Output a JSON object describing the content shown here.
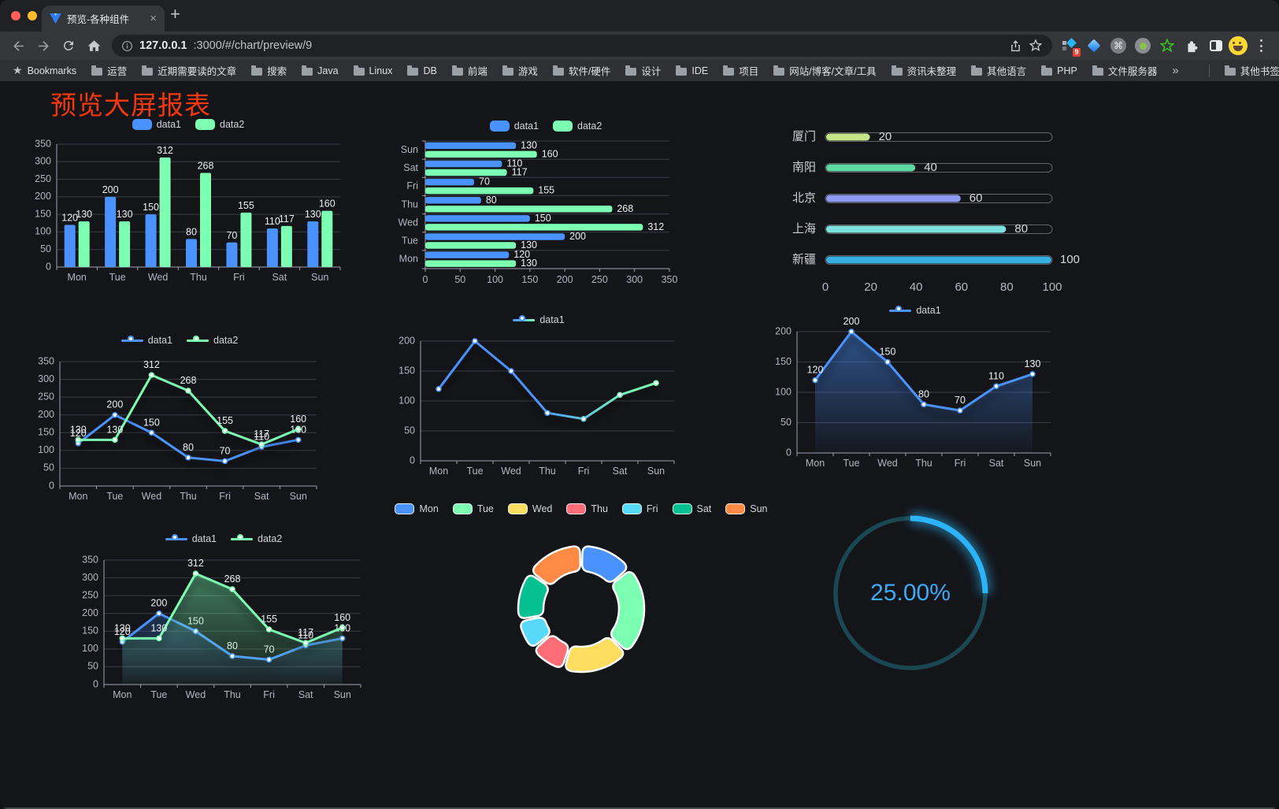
{
  "browser": {
    "traffic_lights": [
      "#ff5f57",
      "#febc2e",
      "#28c840"
    ],
    "tab": {
      "title": "预览-各种组件",
      "close_glyph": "×"
    },
    "new_tab_button": "+",
    "url_host": "127.0.0.1",
    "url_rest": ":3000/#/chart/preview/9",
    "extension_badge": "9",
    "bookmarks_label": "Bookmarks",
    "bookmarks": [
      "运营",
      "近期需要读的文章",
      "搜索",
      "Java",
      "Linux",
      "DB",
      "前端",
      "游戏",
      "软件/硬件",
      "设计",
      "IDE",
      "项目",
      "网站/博客/文章/工具",
      "资讯未整理",
      "其他语言",
      "PHP",
      "文件服务器"
    ],
    "bookmarks_overflow": "»",
    "other_bookmarks": "其他书签"
  },
  "page": {
    "title": "预览大屏报表",
    "title_color": "#f5380c",
    "background": "#141519"
  },
  "palette": {
    "axis_line": "#9ea3ae",
    "grid_line": "#3b3d47",
    "axis_label": "#b2b6c2",
    "value_label": "#eef0f4",
    "legend_label": "#d2d5dc",
    "series_blue": "#4992ff",
    "series_green": "#7cffb2"
  },
  "chart_data": [
    {
      "id": "grouped-bar",
      "type": "bar",
      "title": "",
      "legend": "rect",
      "labels": true,
      "categories": [
        "Mon",
        "Tue",
        "Wed",
        "Thu",
        "Fri",
        "Sat",
        "Sun"
      ],
      "series": [
        {
          "name": "data1",
          "color": "#4992ff",
          "values": [
            120,
            200,
            150,
            80,
            70,
            110,
            130
          ]
        },
        {
          "name": "data2",
          "color": "#7cffb2",
          "values": [
            130,
            130,
            312,
            268,
            155,
            117,
            160
          ]
        }
      ],
      "ylim": [
        0,
        350
      ],
      "yticks": [
        0,
        50,
        100,
        150,
        200,
        250,
        300,
        350
      ]
    },
    {
      "id": "horizontal-bar",
      "type": "hbar",
      "legend": "rect",
      "labels": true,
      "categories": [
        "Mon",
        "Tue",
        "Wed",
        "Thu",
        "Fri",
        "Sat",
        "Sun"
      ],
      "series": [
        {
          "name": "data1",
          "color": "#4992ff",
          "values": [
            120,
            200,
            150,
            80,
            70,
            110,
            130
          ]
        },
        {
          "name": "data2",
          "color": "#7cffb2",
          "values": [
            130,
            130,
            312,
            268,
            155,
            117,
            160
          ]
        }
      ],
      "xlim": [
        0,
        350
      ],
      "xticks": [
        0,
        50,
        100,
        150,
        200,
        250,
        300,
        350
      ]
    },
    {
      "id": "city-progress",
      "type": "progress",
      "max": 100,
      "ticks": [
        0,
        20,
        40,
        60,
        80,
        100
      ],
      "items": [
        {
          "label": "厦门",
          "value": 20,
          "color": "#c6e589"
        },
        {
          "label": "南阳",
          "value": 40,
          "color": "#5fd9a4"
        },
        {
          "label": "北京",
          "value": 60,
          "color": "#8e9af0"
        },
        {
          "label": "上海",
          "value": 80,
          "color": "#7de1df"
        },
        {
          "label": "新疆",
          "value": 100,
          "color": "#38aee3"
        }
      ]
    },
    {
      "id": "two-line",
      "type": "line",
      "legend": "line",
      "labels": true,
      "categories": [
        "Mon",
        "Tue",
        "Wed",
        "Thu",
        "Fri",
        "Sat",
        "Sun"
      ],
      "series": [
        {
          "name": "data1",
          "color": "#4992ff",
          "values": [
            120,
            200,
            150,
            80,
            70,
            110,
            130
          ]
        },
        {
          "name": "data2",
          "color": "#7cffb2",
          "values": [
            130,
            130,
            312,
            268,
            155,
            117,
            160
          ]
        }
      ],
      "ylim": [
        0,
        350
      ],
      "yticks": [
        0,
        50,
        100,
        150,
        200,
        250,
        300,
        350
      ]
    },
    {
      "id": "gradient-line",
      "type": "line",
      "legend": "line",
      "labels": false,
      "categories": [
        "Mon",
        "Tue",
        "Wed",
        "Thu",
        "Fri",
        "Sat",
        "Sun"
      ],
      "series": [
        {
          "name": "data1",
          "gradient": [
            "#4992ff",
            "#7cffb2"
          ],
          "values": [
            120,
            200,
            150,
            80,
            70,
            110,
            130
          ]
        }
      ],
      "ylim": [
        0,
        200
      ],
      "yticks": [
        0,
        50,
        100,
        150,
        200
      ]
    },
    {
      "id": "blue-area",
      "type": "line",
      "area": true,
      "legend": "line",
      "labels": true,
      "categories": [
        "Mon",
        "Tue",
        "Wed",
        "Thu",
        "Fri",
        "Sat",
        "Sun"
      ],
      "series": [
        {
          "name": "data1",
          "color": "#4992ff",
          "values": [
            120,
            200,
            150,
            80,
            70,
            110,
            130
          ]
        }
      ],
      "ylim": [
        0,
        200
      ],
      "yticks": [
        0,
        50,
        100,
        150,
        200
      ]
    },
    {
      "id": "two-area",
      "type": "line",
      "area": true,
      "legend": "line",
      "labels": true,
      "categories": [
        "Mon",
        "Tue",
        "Wed",
        "Thu",
        "Fri",
        "Sat",
        "Sun"
      ],
      "series": [
        {
          "name": "data1",
          "color": "#4992ff",
          "values": [
            120,
            200,
            150,
            80,
            70,
            110,
            130
          ]
        },
        {
          "name": "data2",
          "color": "#7cffb2",
          "values": [
            130,
            130,
            312,
            268,
            155,
            117,
            160
          ]
        }
      ],
      "ylim": [
        0,
        350
      ],
      "yticks": [
        0,
        50,
        100,
        150,
        200,
        250,
        300,
        350
      ]
    },
    {
      "id": "weekday-donut",
      "type": "pie",
      "legend": "rect",
      "items": [
        {
          "label": "Mon",
          "value": 120,
          "color": "#4992ff"
        },
        {
          "label": "Tue",
          "value": 200,
          "color": "#7cffb2"
        },
        {
          "label": "Wed",
          "value": 150,
          "color": "#fddd60"
        },
        {
          "label": "Thu",
          "value": 80,
          "color": "#ff6e76"
        },
        {
          "label": "Fri",
          "value": 70,
          "color": "#58d9f9"
        },
        {
          "label": "Sat",
          "value": 110,
          "color": "#05c091"
        },
        {
          "label": "Sun",
          "value": 130,
          "color": "#ff8a45"
        }
      ]
    },
    {
      "id": "percent-gauge",
      "type": "gauge",
      "value": 25,
      "text": "25.00%",
      "track_color": "#1b4752",
      "progress_color": "#2db4f8",
      "text_color": "#3ea9f5"
    }
  ]
}
